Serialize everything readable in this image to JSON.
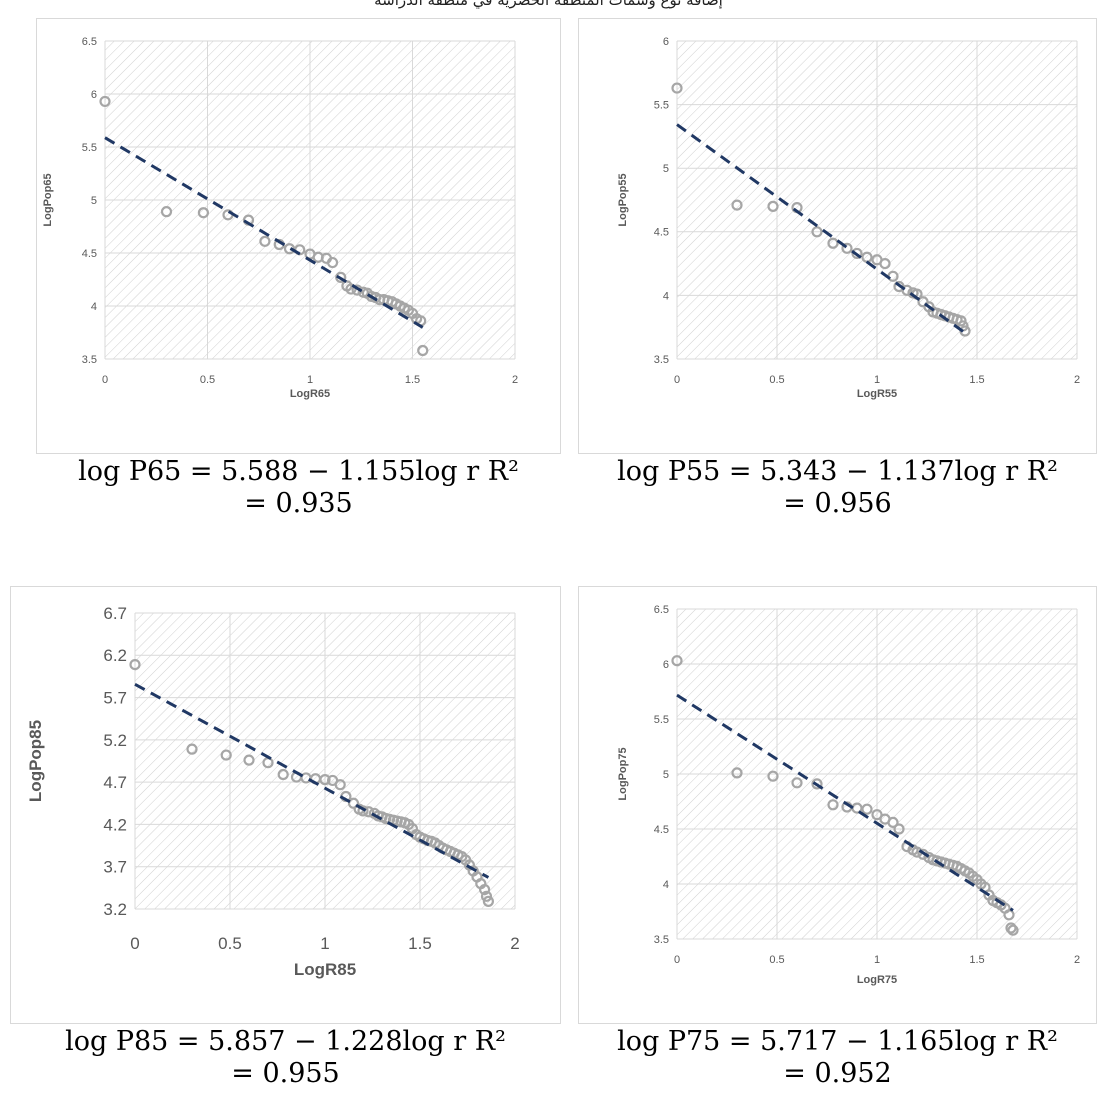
{
  "caption": "إضافة نوع وسمات المنطقة الحضرية في منطقة الدراسة",
  "colors": {
    "points": "#a6a6a6",
    "trend": "#203864",
    "grid": "#d9d9d9",
    "hatch": "#d0d0d0",
    "text": "#595959"
  },
  "chart_data": [
    {
      "type": "scatter",
      "id": "p65",
      "xlabel": "LogR65",
      "ylabel": "LogPop65",
      "xlim": [
        0,
        2
      ],
      "ylim": [
        3.5,
        6.5
      ],
      "xticks": [
        "0",
        "0.5",
        "1",
        "1.5",
        "2"
      ],
      "yticks": [
        "3.5",
        "4",
        "4.5",
        "5",
        "5.5",
        "6",
        "6.5"
      ],
      "trendline": {
        "intercept": 5.588,
        "slope": -1.155,
        "style": "dashed"
      },
      "points": [
        [
          0,
          5.93
        ],
        [
          0.3,
          4.89
        ],
        [
          0.48,
          4.88
        ],
        [
          0.6,
          4.86
        ],
        [
          0.7,
          4.81
        ],
        [
          0.78,
          4.61
        ],
        [
          0.85,
          4.58
        ],
        [
          0.9,
          4.54
        ],
        [
          0.95,
          4.53
        ],
        [
          1.0,
          4.49
        ],
        [
          1.04,
          4.46
        ],
        [
          1.08,
          4.45
        ],
        [
          1.11,
          4.41
        ],
        [
          1.15,
          4.27
        ],
        [
          1.18,
          4.19
        ],
        [
          1.2,
          4.16
        ],
        [
          1.23,
          4.15
        ],
        [
          1.26,
          4.13
        ],
        [
          1.28,
          4.12
        ],
        [
          1.3,
          4.09
        ],
        [
          1.32,
          4.08
        ],
        [
          1.34,
          4.06
        ],
        [
          1.36,
          4.06
        ],
        [
          1.38,
          4.05
        ],
        [
          1.4,
          4.04
        ],
        [
          1.42,
          4.02
        ],
        [
          1.44,
          4.0
        ],
        [
          1.46,
          3.98
        ],
        [
          1.48,
          3.96
        ],
        [
          1.5,
          3.93
        ],
        [
          1.52,
          3.88
        ],
        [
          1.54,
          3.86
        ],
        [
          1.55,
          3.58
        ]
      ],
      "equation_line1": "log P65 = 5.588 − 1.155log r    R²",
      "equation_line2": "= 0.935"
    },
    {
      "type": "scatter",
      "id": "p55",
      "xlabel": "LogR55",
      "ylabel": "LogPop55",
      "xlim": [
        0,
        2
      ],
      "ylim": [
        3.5,
        6
      ],
      "xticks": [
        "0",
        "0.5",
        "1",
        "1.5",
        "2"
      ],
      "yticks": [
        "3.5",
        "4",
        "4.5",
        "5",
        "5.5",
        "6"
      ],
      "trendline": {
        "intercept": 5.343,
        "slope": -1.137,
        "style": "dashed"
      },
      "points": [
        [
          0,
          5.63
        ],
        [
          0.3,
          4.71
        ],
        [
          0.48,
          4.7
        ],
        [
          0.6,
          4.69
        ],
        [
          0.7,
          4.5
        ],
        [
          0.78,
          4.41
        ],
        [
          0.85,
          4.37
        ],
        [
          0.9,
          4.33
        ],
        [
          0.95,
          4.3
        ],
        [
          1.0,
          4.28
        ],
        [
          1.04,
          4.25
        ],
        [
          1.08,
          4.15
        ],
        [
          1.11,
          4.07
        ],
        [
          1.15,
          4.04
        ],
        [
          1.18,
          4.02
        ],
        [
          1.2,
          4.01
        ],
        [
          1.23,
          3.95
        ],
        [
          1.26,
          3.91
        ],
        [
          1.28,
          3.87
        ],
        [
          1.3,
          3.86
        ],
        [
          1.32,
          3.85
        ],
        [
          1.34,
          3.84
        ],
        [
          1.36,
          3.83
        ],
        [
          1.38,
          3.82
        ],
        [
          1.4,
          3.81
        ],
        [
          1.42,
          3.8
        ],
        [
          1.43,
          3.76
        ],
        [
          1.44,
          3.72
        ]
      ],
      "equation_line1": "log P55 = 5.343 − 1.137log r    R²",
      "equation_line2": "= 0.956"
    },
    {
      "type": "scatter",
      "id": "p85",
      "xlabel": "LogR85",
      "ylabel": "LogPop85",
      "xlim": [
        0,
        2
      ],
      "ylim": [
        3.2,
        6.7
      ],
      "xticks": [
        "0",
        "0.5",
        "1",
        "1.5",
        "2"
      ],
      "yticks": [
        "3.2",
        "3.7",
        "4.2",
        "4.7",
        "5.2",
        "5.7",
        "6.2",
        "6.7"
      ],
      "trendline": {
        "intercept": 5.857,
        "slope": -1.228,
        "style": "dashed"
      },
      "points": [
        [
          0,
          6.09
        ],
        [
          0.3,
          5.09
        ],
        [
          0.48,
          5.02
        ],
        [
          0.6,
          4.96
        ],
        [
          0.7,
          4.93
        ],
        [
          0.78,
          4.79
        ],
        [
          0.85,
          4.76
        ],
        [
          0.9,
          4.75
        ],
        [
          0.95,
          4.74
        ],
        [
          1.0,
          4.73
        ],
        [
          1.04,
          4.72
        ],
        [
          1.08,
          4.67
        ],
        [
          1.11,
          4.53
        ],
        [
          1.15,
          4.45
        ],
        [
          1.18,
          4.38
        ],
        [
          1.2,
          4.36
        ],
        [
          1.23,
          4.35
        ],
        [
          1.26,
          4.33
        ],
        [
          1.28,
          4.3
        ],
        [
          1.3,
          4.29
        ],
        [
          1.32,
          4.27
        ],
        [
          1.34,
          4.26
        ],
        [
          1.36,
          4.25
        ],
        [
          1.38,
          4.24
        ],
        [
          1.4,
          4.23
        ],
        [
          1.42,
          4.22
        ],
        [
          1.44,
          4.2
        ],
        [
          1.46,
          4.15
        ],
        [
          1.48,
          4.08
        ],
        [
          1.5,
          4.05
        ],
        [
          1.52,
          4.03
        ],
        [
          1.54,
          4.01
        ],
        [
          1.56,
          4.0
        ],
        [
          1.58,
          3.98
        ],
        [
          1.6,
          3.95
        ],
        [
          1.62,
          3.92
        ],
        [
          1.64,
          3.9
        ],
        [
          1.66,
          3.88
        ],
        [
          1.68,
          3.86
        ],
        [
          1.7,
          3.84
        ],
        [
          1.72,
          3.82
        ],
        [
          1.74,
          3.78
        ],
        [
          1.76,
          3.72
        ],
        [
          1.78,
          3.65
        ],
        [
          1.8,
          3.58
        ],
        [
          1.82,
          3.5
        ],
        [
          1.84,
          3.43
        ],
        [
          1.85,
          3.35
        ],
        [
          1.86,
          3.29
        ]
      ],
      "equation_line1": "log P85 = 5.857 − 1.228log r    R²",
      "equation_line2": "= 0.955"
    },
    {
      "type": "scatter",
      "id": "p75",
      "xlabel": "LogR75",
      "ylabel": "LogPop75",
      "xlim": [
        0,
        2
      ],
      "ylim": [
        3.5,
        6.5
      ],
      "xticks": [
        "0",
        "0.5",
        "1",
        "1.5",
        "2"
      ],
      "yticks": [
        "3.5",
        "4",
        "4.5",
        "5",
        "5.5",
        "6",
        "6.5"
      ],
      "trendline": {
        "intercept": 5.717,
        "slope": -1.165,
        "style": "dashed"
      },
      "points": [
        [
          0,
          6.03
        ],
        [
          0.3,
          5.01
        ],
        [
          0.48,
          4.98
        ],
        [
          0.6,
          4.92
        ],
        [
          0.7,
          4.91
        ],
        [
          0.78,
          4.72
        ],
        [
          0.85,
          4.7
        ],
        [
          0.9,
          4.69
        ],
        [
          0.95,
          4.68
        ],
        [
          1.0,
          4.63
        ],
        [
          1.04,
          4.59
        ],
        [
          1.08,
          4.56
        ],
        [
          1.11,
          4.5
        ],
        [
          1.15,
          4.34
        ],
        [
          1.18,
          4.31
        ],
        [
          1.2,
          4.29
        ],
        [
          1.23,
          4.27
        ],
        [
          1.26,
          4.24
        ],
        [
          1.28,
          4.22
        ],
        [
          1.3,
          4.21
        ],
        [
          1.32,
          4.2
        ],
        [
          1.34,
          4.19
        ],
        [
          1.36,
          4.18
        ],
        [
          1.38,
          4.17
        ],
        [
          1.4,
          4.16
        ],
        [
          1.42,
          4.14
        ],
        [
          1.44,
          4.12
        ],
        [
          1.46,
          4.1
        ],
        [
          1.48,
          4.07
        ],
        [
          1.5,
          4.04
        ],
        [
          1.52,
          4.0
        ],
        [
          1.54,
          3.97
        ],
        [
          1.56,
          3.9
        ],
        [
          1.58,
          3.85
        ],
        [
          1.6,
          3.83
        ],
        [
          1.62,
          3.81
        ],
        [
          1.64,
          3.78
        ],
        [
          1.66,
          3.72
        ],
        [
          1.67,
          3.6
        ],
        [
          1.68,
          3.58
        ]
      ],
      "equation_line1": "log P75 = 5.717 − 1.165log r    R²",
      "equation_line2": "= 0.952"
    }
  ]
}
